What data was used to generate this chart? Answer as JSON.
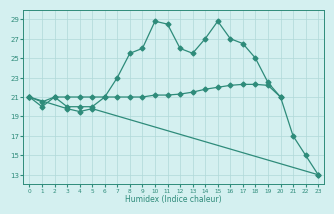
{
  "line1_x": [
    0,
    1,
    2,
    3,
    4,
    5,
    6,
    7,
    8,
    9,
    10,
    11,
    12,
    13,
    14,
    15,
    16,
    17,
    18,
    19,
    20,
    21,
    22,
    23
  ],
  "line1_y": [
    21.0,
    20.0,
    21.0,
    20.0,
    20.0,
    20.0,
    21.0,
    23.0,
    25.5,
    26.0,
    28.8,
    28.5,
    26.0,
    25.5,
    27.0,
    28.8,
    27.0,
    26.5,
    25.0,
    22.5,
    21.0,
    17.0,
    15.0,
    13.0
  ],
  "line2_x": [
    0,
    1,
    2,
    3,
    4,
    5,
    6,
    7,
    8,
    9,
    10,
    11,
    12,
    13,
    14,
    15,
    16,
    17,
    18,
    19,
    20
  ],
  "line2_y": [
    21.0,
    20.5,
    21.0,
    21.0,
    21.0,
    21.0,
    21.0,
    21.0,
    21.0,
    21.0,
    21.2,
    21.2,
    21.3,
    21.5,
    21.8,
    22.0,
    22.2,
    22.3,
    22.3,
    22.2,
    21.0
  ],
  "line3_x": [
    0,
    3,
    4,
    5,
    23
  ],
  "line3_y": [
    21.0,
    19.8,
    19.5,
    19.8,
    13.0
  ],
  "xlabel": "Humidex (Indice chaleur)",
  "xlim": [
    -0.5,
    23.5
  ],
  "ylim": [
    12,
    30
  ],
  "yticks": [
    13,
    15,
    17,
    19,
    21,
    23,
    25,
    27,
    29
  ],
  "xticks": [
    0,
    1,
    2,
    3,
    4,
    5,
    6,
    7,
    8,
    9,
    10,
    11,
    12,
    13,
    14,
    15,
    16,
    17,
    18,
    19,
    20,
    21,
    22,
    23
  ],
  "line_color": "#2e8b7a",
  "bg_color": "#d4f0f0",
  "grid_color": "#b0d8d8",
  "marker_size": 2.5
}
